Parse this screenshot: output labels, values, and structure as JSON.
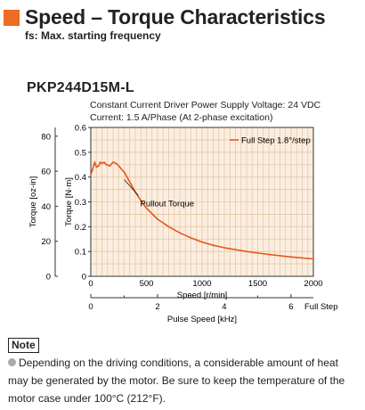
{
  "header": {
    "title": "Speed – Torque Characteristics",
    "subtitle": "fs: Max. starting frequency"
  },
  "model": "PKP244D15M-L",
  "conditions": {
    "line1": "Constant Current Driver    Power Supply Voltage: 24 VDC",
    "line2": "Current: 1.5 A/Phase (At 2-phase excitation)"
  },
  "note": {
    "label": "Note",
    "text": "Depending on the driving conditions, a considerable amount of heat may be generated by the motor. Be sure to keep the temperature of the motor case under 100°C (212°F)."
  },
  "colors": {
    "curve": "#e8561c",
    "grid": "#e6c8a8",
    "plot_bg": "#fbeee0",
    "header_square": "#ef6a22"
  },
  "chart_data": {
    "type": "line",
    "x_axis": {
      "label": "Speed [r/min]",
      "range": [
        0,
        2000
      ],
      "ticks": [
        "0",
        "500",
        "1000",
        "1500",
        "2000"
      ]
    },
    "x2_axis": {
      "label": "Pulse Speed [kHz]",
      "range": [
        0,
        6.67
      ],
      "ticks": [
        "0",
        "2",
        "4",
        "6"
      ],
      "end_label": "Full Step"
    },
    "y_axis": {
      "label": "Torque [N·m]",
      "range": [
        0,
        0.6
      ],
      "ticks": [
        "0",
        "0.1",
        "0.2",
        "0.3",
        "0.4",
        "0.5",
        "0.6"
      ]
    },
    "y2_axis": {
      "label": "Torque [oz-in]",
      "range": [
        0,
        85
      ],
      "ticks": [
        "0",
        "20",
        "40",
        "60",
        "80"
      ]
    },
    "grid": true,
    "legend": {
      "entry": "Full Step 1.8°/step",
      "placement": "top-right"
    },
    "annotations": [
      "Pullout Torque"
    ],
    "series": [
      {
        "name": "Full Step 1.8°/step",
        "x": [
          0,
          15,
          35,
          50,
          70,
          85,
          100,
          120,
          140,
          170,
          200,
          230,
          260,
          300,
          350,
          400,
          450,
          500,
          600,
          700,
          800,
          900,
          1000,
          1100,
          1200,
          1400,
          1600,
          1800,
          2000
        ],
        "y": [
          0.41,
          0.43,
          0.46,
          0.44,
          0.445,
          0.46,
          0.455,
          0.46,
          0.45,
          0.445,
          0.46,
          0.455,
          0.44,
          0.42,
          0.38,
          0.34,
          0.305,
          0.275,
          0.23,
          0.2,
          0.175,
          0.155,
          0.138,
          0.125,
          0.115,
          0.1,
          0.088,
          0.078,
          0.07
        ]
      }
    ]
  }
}
